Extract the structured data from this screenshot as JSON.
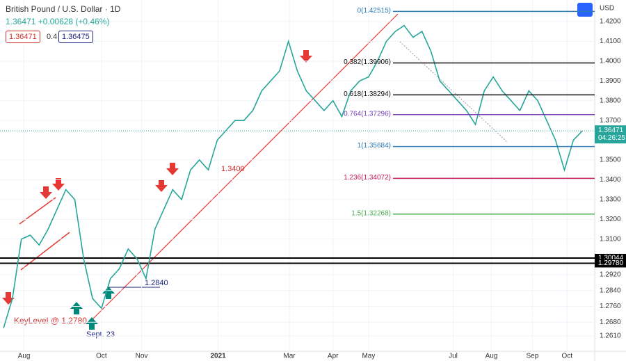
{
  "header": {
    "symbol": "British Pound / U.S. Dollar",
    "interval": "1D",
    "quote": "1.36471 +0.00628 (+0.46%)",
    "sell": "1.36471",
    "spread": "0.4",
    "buy": "1.36475",
    "currency": "USD",
    "countdown": "04:26:25"
  },
  "chart_data": {
    "type": "line",
    "x": [
      0,
      1,
      2,
      3,
      4,
      5,
      6,
      7,
      8,
      9,
      10,
      11,
      12,
      13,
      14,
      15,
      16,
      17,
      18,
      19,
      20,
      21,
      22,
      23,
      24,
      25,
      26,
      27,
      28,
      29,
      30,
      31,
      32,
      33,
      34,
      35,
      36,
      37,
      38,
      39,
      40,
      41,
      42,
      43,
      44,
      45,
      46,
      47,
      48,
      49,
      50,
      51,
      52,
      53,
      54,
      55,
      56,
      57,
      58,
      59,
      60,
      61,
      62,
      63,
      64,
      65
    ],
    "series": [
      {
        "name": "GBPUSD",
        "color": "#26a69a",
        "values": [
          1.265,
          1.28,
          1.31,
          1.312,
          1.307,
          1.315,
          1.325,
          1.335,
          1.33,
          1.3,
          1.28,
          1.275,
          1.29,
          1.295,
          1.305,
          1.3,
          1.29,
          1.315,
          1.325,
          1.335,
          1.33,
          1.345,
          1.35,
          1.345,
          1.36,
          1.365,
          1.37,
          1.37,
          1.375,
          1.385,
          1.39,
          1.395,
          1.41,
          1.395,
          1.385,
          1.38,
          1.375,
          1.38,
          1.372,
          1.385,
          1.39,
          1.392,
          1.4,
          1.41,
          1.415,
          1.418,
          1.412,
          1.415,
          1.405,
          1.39,
          1.385,
          1.38,
          1.375,
          1.368,
          1.385,
          1.392,
          1.385,
          1.38,
          1.375,
          1.385,
          1.38,
          1.37,
          1.36,
          1.345,
          1.36,
          1.36471
        ]
      }
    ],
    "xlim": [
      -0.4,
      66.4
    ],
    "xticks": [
      {
        "value": 2.3,
        "label": "Aug"
      },
      {
        "value": 11,
        "label": "Oct"
      },
      {
        "value": 15.5,
        "label": "Nov"
      },
      {
        "value": 24.1,
        "label": "2021"
      },
      {
        "value": 32.1,
        "label": "Mar"
      },
      {
        "value": 37,
        "label": "Apr"
      },
      {
        "value": 41,
        "label": "May"
      },
      {
        "value": 50.5,
        "label": "Jul"
      },
      {
        "value": 54.8,
        "label": "Aug"
      },
      {
        "value": 59.4,
        "label": "Sep"
      },
      {
        "value": 63.3,
        "label": "Oct"
      }
    ],
    "ylim": [
      1.2533,
      1.4309
    ],
    "yticks": [
      {
        "value": 1.42,
        "label": "1.4200"
      },
      {
        "value": 1.41,
        "label": "1.4100"
      },
      {
        "value": 1.4,
        "label": "1.4000"
      },
      {
        "value": 1.39,
        "label": "1.3900"
      },
      {
        "value": 1.38,
        "label": "1.3800"
      },
      {
        "value": 1.37,
        "label": "1.3700"
      },
      {
        "value": 1.35,
        "label": "1.3500"
      },
      {
        "value": 1.34,
        "label": "1.3400"
      },
      {
        "value": 1.33,
        "label": "1.3300"
      },
      {
        "value": 1.32,
        "label": "1.3200"
      },
      {
        "value": 1.31,
        "label": "1.3100"
      },
      {
        "value": 1.292,
        "label": "1.2920"
      },
      {
        "value": 1.284,
        "label": "1.2840"
      },
      {
        "value": 1.276,
        "label": "1.2760"
      },
      {
        "value": 1.268,
        "label": "1.2680"
      },
      {
        "value": 1.261,
        "label": "1.2610"
      }
    ],
    "current": {
      "value": 1.36471,
      "label": "1.36471"
    },
    "fib_levels": [
      {
        "label": "0(1.42515)",
        "value": 1.42515,
        "color": "#2a7ab8"
      },
      {
        "label": "0.382(1.39906)",
        "value": 1.39906,
        "color": "#111111"
      },
      {
        "label": "0.618(1.38294)",
        "value": 1.38294,
        "color": "#111111"
      },
      {
        "label": "0.764(1.37296)",
        "value": 1.37296,
        "color": "#7b3fb5"
      },
      {
        "label": "1(1.35684)",
        "value": 1.35684,
        "color": "#2a7ab8"
      },
      {
        "label": "1.236(1.34072)",
        "value": 1.34072,
        "color": "#d0185a"
      },
      {
        "label": "1.5(1.32268)",
        "value": 1.32268,
        "color": "#4caf50"
      }
    ],
    "hlines": [
      {
        "value": 1.30044,
        "label": "1.30044"
      },
      {
        "value": 1.2978,
        "label": "1.29780"
      }
    ],
    "annotations": {
      "key_level": "KeyLevel @ 1.2780",
      "sept": "Sept. 23",
      "low": "1.2840",
      "mid": "1.3400"
    }
  }
}
